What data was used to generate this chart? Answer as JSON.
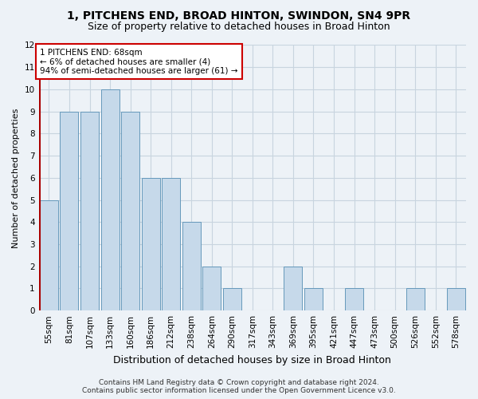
{
  "title": "1, PITCHENS END, BROAD HINTON, SWINDON, SN4 9PR",
  "subtitle": "Size of property relative to detached houses in Broad Hinton",
  "xlabel": "Distribution of detached houses by size in Broad Hinton",
  "ylabel": "Number of detached properties",
  "categories": [
    "55sqm",
    "81sqm",
    "107sqm",
    "133sqm",
    "160sqm",
    "186sqm",
    "212sqm",
    "238sqm",
    "264sqm",
    "290sqm",
    "317sqm",
    "343sqm",
    "369sqm",
    "395sqm",
    "421sqm",
    "447sqm",
    "473sqm",
    "500sqm",
    "526sqm",
    "552sqm",
    "578sqm"
  ],
  "values": [
    5,
    9,
    9,
    10,
    9,
    6,
    6,
    4,
    2,
    1,
    0,
    0,
    2,
    1,
    0,
    1,
    0,
    0,
    1,
    0,
    1
  ],
  "bar_color": "#c6d9ea",
  "bar_edge_color": "#6699bb",
  "redline_x": 0,
  "annotation_text": "1 PITCHENS END: 68sqm\n← 6% of detached houses are smaller (4)\n94% of semi-detached houses are larger (61) →",
  "annotation_box_color": "white",
  "annotation_box_edge_color": "#cc0000",
  "redline_color": "#aa0000",
  "ylim": [
    0,
    12
  ],
  "yticks": [
    0,
    1,
    2,
    3,
    4,
    5,
    6,
    7,
    8,
    9,
    10,
    11,
    12
  ],
  "grid_color": "#c8d4df",
  "footer_line1": "Contains HM Land Registry data © Crown copyright and database right 2024.",
  "footer_line2": "Contains public sector information licensed under the Open Government Licence v3.0.",
  "bg_color": "#edf2f7",
  "plot_bg_color": "#edf2f7",
  "title_fontsize": 10,
  "subtitle_fontsize": 9,
  "xlabel_fontsize": 9,
  "ylabel_fontsize": 8,
  "tick_fontsize": 7.5,
  "annotation_fontsize": 7.5,
  "footer_fontsize": 6.5
}
